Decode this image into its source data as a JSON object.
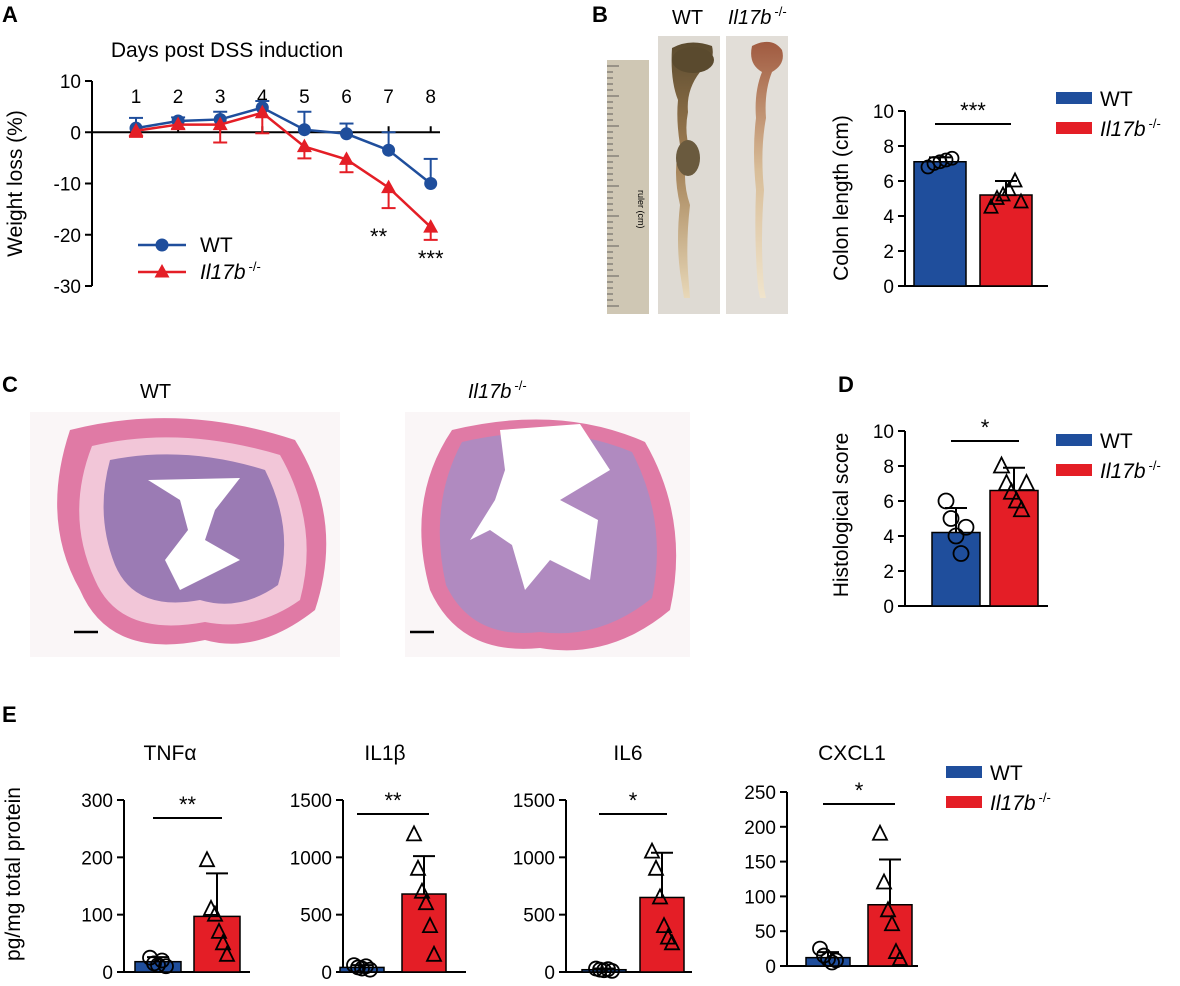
{
  "colors": {
    "wt": "#1f4e9c",
    "ko": "#e41e26",
    "axis": "#000000",
    "he_pink": "#e07aa5",
    "he_purple": "#8a6aa8",
    "bg": "#ffffff"
  },
  "panel_letters": [
    "A",
    "B",
    "C",
    "D",
    "E"
  ],
  "legend": {
    "wt": "WT",
    "ko_base": "Il17b",
    "ko_sup": "-/-"
  },
  "panel_b": {
    "photo_wt": "WT",
    "photo_ko_base": "Il17b",
    "photo_ko_sup": "-/-",
    "ruler_label": "ruler (cm)"
  },
  "panel_c": {
    "img_wt": "WT",
    "img_ko_base": "Il17b",
    "img_ko_sup": "-/-"
  },
  "chart_data": [
    {
      "id": "A",
      "type": "line",
      "title": "Days post DSS induction",
      "xlabel": "",
      "ylabel": "Weight loss (%)",
      "x": [
        1,
        2,
        3,
        4,
        5,
        6,
        7,
        8
      ],
      "xticklabels": [
        "1",
        "2",
        "3",
        "4",
        "5",
        "6",
        "7",
        "8"
      ],
      "ylim": [
        -30,
        10
      ],
      "yticks": [
        10,
        0,
        -10,
        -20,
        -30
      ],
      "yticklabels": [
        "10",
        "0",
        "-10",
        "-20",
        "-30"
      ],
      "series": [
        {
          "name": "WT",
          "values": [
            0.8,
            2.2,
            2.5,
            4.8,
            0.5,
            -0.3,
            -3.5,
            -10
          ],
          "errors": [
            2.0,
            0.7,
            1.5,
            1.3,
            3.5,
            2.0,
            3.5,
            4.8
          ],
          "err_dir": "up"
        },
        {
          "name": "Il17b -/-",
          "values": [
            0.3,
            1.5,
            1.5,
            3.8,
            -2.8,
            -5.3,
            -10.8,
            -18.5
          ],
          "errors": [
            1.2,
            0.8,
            3.5,
            4.0,
            2.3,
            2.5,
            4.0,
            2.5
          ],
          "err_dir": "down"
        }
      ],
      "annotations": [
        {
          "x": 7,
          "text": "**"
        },
        {
          "x": 8,
          "text": "***"
        }
      ]
    },
    {
      "id": "B",
      "type": "bar",
      "ylabel": "Colon length (cm)",
      "categories": [
        "WT",
        "Il17b -/-"
      ],
      "values": [
        7.1,
        5.2
      ],
      "errors": [
        0.25,
        0.8
      ],
      "ylim": [
        0,
        10
      ],
      "yticks": [
        0,
        2,
        4,
        6,
        8,
        10
      ],
      "points": [
        [
          6.8,
          7.0,
          7.1,
          7.2,
          7.3
        ],
        [
          4.5,
          5.0,
          5.2,
          5.5,
          6.0,
          4.8
        ]
      ],
      "significance": "***"
    },
    {
      "id": "D",
      "type": "bar",
      "ylabel": "Histological score",
      "categories": [
        "WT",
        "Il17b -/-"
      ],
      "values": [
        4.2,
        6.6
      ],
      "errors": [
        1.4,
        1.3
      ],
      "ylim": [
        0,
        10
      ],
      "yticks": [
        0,
        2,
        4,
        6,
        8,
        10
      ],
      "points": [
        [
          6.0,
          5.0,
          4.0,
          3.0,
          4.5
        ],
        [
          8.0,
          7.0,
          6.5,
          6.0,
          5.5,
          7.0
        ]
      ],
      "significance": "*"
    },
    {
      "id": "E1",
      "type": "bar",
      "title": "TNFα",
      "ylabel": "pg/mg total protein",
      "categories": [
        "WT",
        "Il17b -/-"
      ],
      "values": [
        18,
        97
      ],
      "errors": [
        8,
        75
      ],
      "ylim": [
        0,
        300
      ],
      "yticks": [
        0,
        100,
        200,
        300
      ],
      "points": [
        [
          25,
          15,
          12,
          20,
          10
        ],
        [
          195,
          110,
          100,
          70,
          50,
          30
        ]
      ],
      "significance": "**"
    },
    {
      "id": "E2",
      "type": "bar",
      "title": "IL1β",
      "ylabel": "",
      "categories": [
        "WT",
        "Il17b -/-"
      ],
      "values": [
        40,
        680
      ],
      "errors": [
        20,
        330
      ],
      "ylim": [
        0,
        1500
      ],
      "yticks": [
        0,
        500,
        1000,
        1500
      ],
      "points": [
        [
          60,
          40,
          30,
          50,
          20
        ],
        [
          1200,
          900,
          700,
          600,
          400,
          150
        ]
      ],
      "significance": "**"
    },
    {
      "id": "E3",
      "type": "bar",
      "title": "IL6",
      "ylabel": "",
      "categories": [
        "WT",
        "Il17b -/-"
      ],
      "values": [
        20,
        650
      ],
      "errors": [
        10,
        390
      ],
      "ylim": [
        0,
        1500
      ],
      "yticks": [
        0,
        500,
        1000,
        1500
      ],
      "points": [
        [
          30,
          20,
          15,
          25,
          10
        ],
        [
          1050,
          900,
          650,
          400,
          300,
          250
        ]
      ],
      "significance": "*"
    },
    {
      "id": "E4",
      "type": "bar",
      "title": "CXCL1",
      "ylabel": "",
      "categories": [
        "WT",
        "Il17b -/-"
      ],
      "values": [
        12,
        88
      ],
      "errors": [
        8,
        65
      ],
      "ylim": [
        0,
        250
      ],
      "yticks": [
        0,
        50,
        100,
        150,
        200,
        250
      ],
      "points": [
        [
          25,
          15,
          10,
          5,
          8
        ],
        [
          190,
          120,
          80,
          60,
          20,
          10
        ]
      ],
      "significance": "*"
    }
  ]
}
